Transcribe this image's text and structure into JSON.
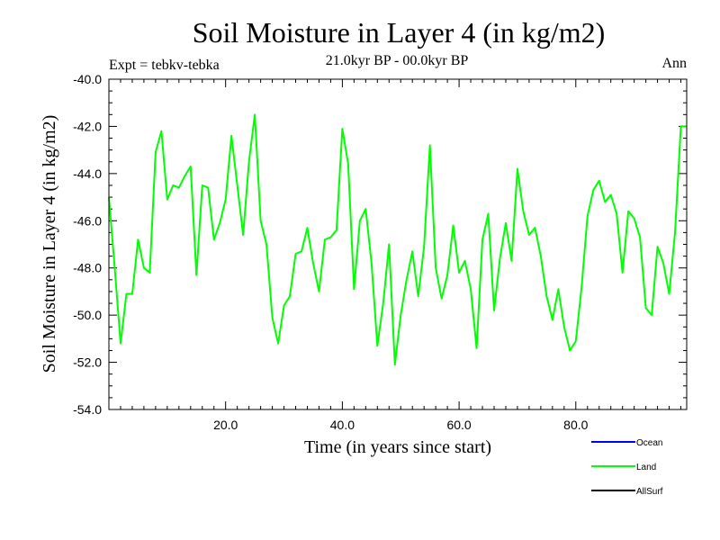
{
  "chart_data": {
    "type": "line",
    "title": "Soil Moisture in Layer 4 (in kg/m2)",
    "subtitle": "21.0kyr BP - 00.0kyr BP",
    "experiment_label": "Expt = tebkv-tebka",
    "season_label": "Ann",
    "xlabel": "Time (in years since start)",
    "ylabel": "Soil Moisture in Layer 4 (in kg/m2)",
    "xlim": [
      0,
      99
    ],
    "ylim": [
      -54.0,
      -40.0
    ],
    "x_ticks": [
      20,
      40,
      60,
      80
    ],
    "x_tick_labels": [
      "20.0",
      "40.0",
      "60.0",
      "80.0"
    ],
    "y_ticks": [
      -54,
      -52,
      -50,
      -48,
      -46,
      -44,
      -42,
      -40
    ],
    "y_tick_labels": [
      "-54.0",
      "-52.0",
      "-50.0",
      "-48.0",
      "-46.0",
      "-44.0",
      "-42.0",
      "-40.0"
    ],
    "legend": [
      {
        "name": "Ocean",
        "color": "#0000ff"
      },
      {
        "name": "Land",
        "color": "#00ff00"
      },
      {
        "name": "AllSurf",
        "color": "#000000"
      }
    ],
    "series": [
      {
        "name": "Land",
        "color": "#00ff00",
        "x": [
          0,
          1,
          2,
          3,
          4,
          5,
          6,
          7,
          8,
          9,
          10,
          11,
          12,
          13,
          14,
          15,
          16,
          17,
          18,
          19,
          20,
          21,
          22,
          23,
          24,
          25,
          26,
          27,
          28,
          29,
          30,
          31,
          32,
          33,
          34,
          35,
          36,
          37,
          38,
          39,
          40,
          41,
          42,
          43,
          44,
          45,
          46,
          47,
          48,
          49,
          50,
          51,
          52,
          53,
          54,
          55,
          56,
          57,
          58,
          59,
          60,
          61,
          62,
          63,
          64,
          65,
          66,
          67,
          68,
          69,
          70,
          71,
          72,
          73,
          74,
          75,
          76,
          77,
          78,
          79,
          80,
          81,
          82,
          83,
          84,
          85,
          86,
          87,
          88,
          89,
          90,
          91,
          92,
          93,
          94,
          95,
          96,
          97,
          98,
          99
        ],
        "values": [
          -45.0,
          -48.0,
          -51.2,
          -49.1,
          -49.1,
          -46.8,
          -48.0,
          -48.2,
          -43.1,
          -42.2,
          -45.1,
          -44.5,
          -44.6,
          -44.1,
          -43.7,
          -48.3,
          -44.5,
          -44.6,
          -46.8,
          -46.1,
          -45.1,
          -42.4,
          -44.5,
          -46.6,
          -43.5,
          -41.5,
          -46.0,
          -47.0,
          -50.1,
          -51.2,
          -49.6,
          -49.2,
          -47.4,
          -47.3,
          -46.3,
          -47.8,
          -49.0,
          -46.8,
          -46.7,
          -46.4,
          -42.1,
          -43.6,
          -48.9,
          -46.0,
          -45.5,
          -47.8,
          -51.3,
          -49.5,
          -47.0,
          -52.1,
          -50.0,
          -48.5,
          -47.3,
          -49.2,
          -47.1,
          -42.8,
          -48.0,
          -49.3,
          -48.3,
          -46.2,
          -48.2,
          -47.7,
          -48.9,
          -51.4,
          -46.8,
          -45.7,
          -49.8,
          -47.6,
          -46.1,
          -47.7,
          -43.8,
          -45.6,
          -46.6,
          -46.3,
          -47.5,
          -49.2,
          -50.2,
          -48.9,
          -50.5,
          -51.5,
          -51.1,
          -48.8,
          -45.8,
          -44.7,
          -44.3,
          -45.2,
          -44.9,
          -45.7,
          -48.2,
          -45.6,
          -45.9,
          -46.7,
          -49.7,
          -50.0,
          -47.1,
          -47.8,
          -49.1,
          -46.5,
          -42.0,
          -42.0
        ]
      }
    ]
  }
}
